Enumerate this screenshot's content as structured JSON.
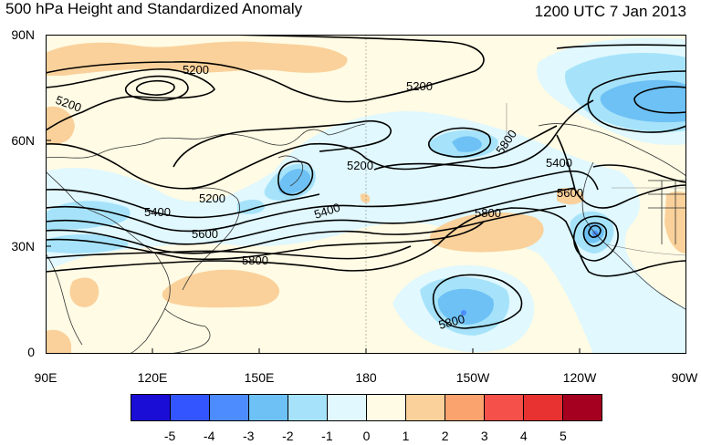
{
  "title_left": "500 hPa Height and Standardized Anomaly",
  "title_right": "1200 UTC 7 Jan 2013",
  "lat_labels": [
    "90N",
    "60N",
    "30N",
    "0"
  ],
  "lon_labels": [
    "90E",
    "120E",
    "150E",
    "180",
    "150W",
    "120W",
    "90W"
  ],
  "contour_labels": [
    "5200",
    "5200",
    "5200",
    "5200",
    "5200",
    "5400",
    "5400",
    "5400",
    "5600",
    "5600",
    "5800",
    "5800",
    "5800",
    "5800"
  ],
  "colorbar": {
    "labels": [
      "-5",
      "-4",
      "-3",
      "-2",
      "-1",
      "0",
      "1",
      "2",
      "3",
      "4",
      "5"
    ],
    "colors": [
      "#1a0dd6",
      "#3355ff",
      "#4d8cff",
      "#6ec1f5",
      "#a6e3fa",
      "#e0f8fe",
      "#fffbe4",
      "#fad19b",
      "#fba36f",
      "#f5504a",
      "#e83232",
      "#a5001f"
    ]
  }
}
